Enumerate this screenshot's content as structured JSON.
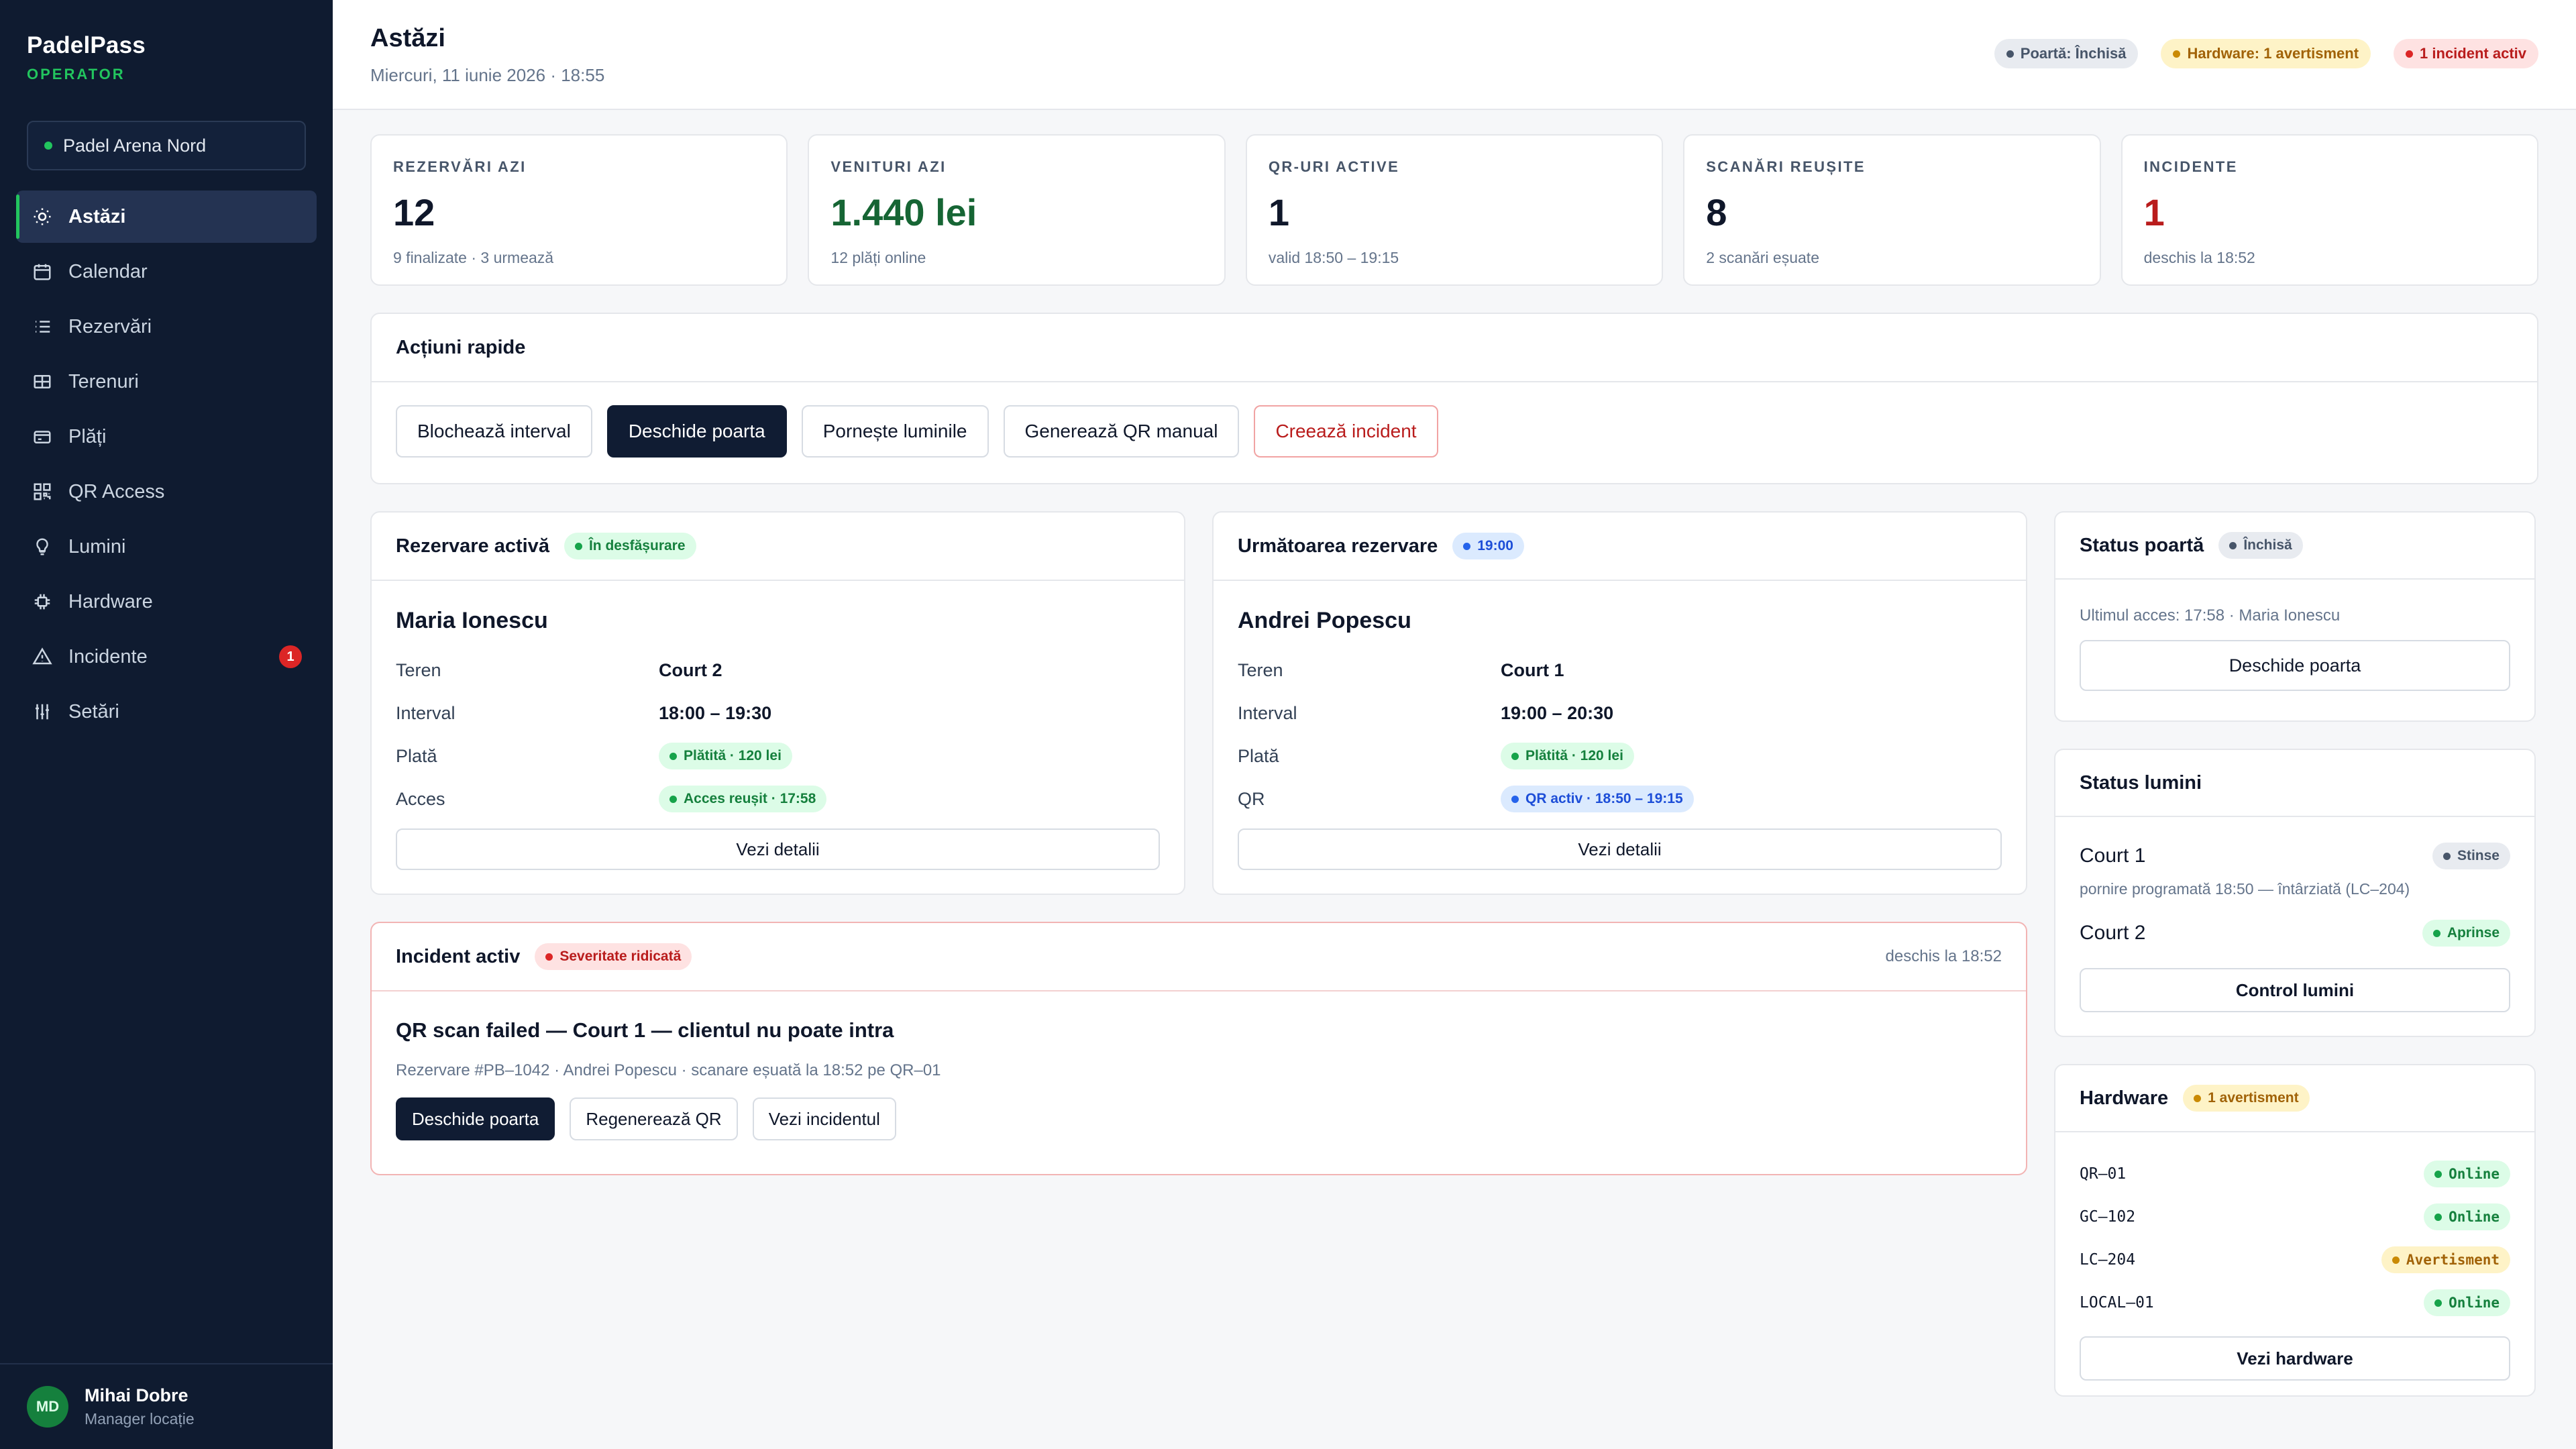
{
  "brand": {
    "name": "PadelPass",
    "subtitle": "OPERATOR"
  },
  "location": {
    "name": "Padel Arena Nord"
  },
  "sidebar": {
    "items": [
      {
        "label": "Astăzi",
        "icon": "sun-icon"
      },
      {
        "label": "Calendar",
        "icon": "calendar-icon"
      },
      {
        "label": "Rezervări",
        "icon": "list-icon"
      },
      {
        "label": "Terenuri",
        "icon": "court-grid-icon"
      },
      {
        "label": "Plăți",
        "icon": "credit-card-icon"
      },
      {
        "label": "QR Access",
        "icon": "qr-code-icon"
      },
      {
        "label": "Lumini",
        "icon": "lightbulb-icon"
      },
      {
        "label": "Hardware",
        "icon": "chip-icon"
      },
      {
        "label": "Incidente",
        "icon": "warning-icon",
        "badge": "1"
      },
      {
        "label": "Setări",
        "icon": "sliders-icon"
      }
    ]
  },
  "user": {
    "initials": "MD",
    "name": "Mihai Dobre",
    "role": "Manager locație"
  },
  "header": {
    "title": "Astăzi",
    "date": "Miercuri, 11 iunie 2026 · 18:55",
    "badges": {
      "gate": "Poartă: Închisă",
      "hardware": "Hardware: 1 avertisment",
      "incident": "1 incident activ"
    }
  },
  "stats": [
    {
      "label": "REZERVĂRI AZI",
      "value": "12",
      "sub": "9 finalizate · 3 urmează"
    },
    {
      "label": "VENITURI AZI",
      "value": "1.440 lei",
      "sub": "12 plăți online"
    },
    {
      "label": "QR-URI ACTIVE",
      "value": "1",
      "sub": "valid 18:50 – 19:15"
    },
    {
      "label": "SCANĂRI REUȘITE",
      "value": "8",
      "sub": "2 scanări eșuate"
    },
    {
      "label": "INCIDENTE",
      "value": "1",
      "sub": "deschis la 18:52"
    }
  ],
  "quick": {
    "title": "Acțiuni rapide",
    "actions": [
      "Blochează interval",
      "Deschide poarta",
      "Pornește luminile",
      "Generează QR manual",
      "Creează incident"
    ]
  },
  "active_res": {
    "title": "Rezervare activă",
    "status": "În desfășurare",
    "name": "Maria Ionescu",
    "rows": [
      {
        "k": "Teren",
        "v": "Court 2"
      },
      {
        "k": "Interval",
        "v": "18:00 – 19:30"
      },
      {
        "k": "Plată",
        "v": "Plătită · 120 lei"
      },
      {
        "k": "Acces",
        "v": "Acces reușit · 17:58"
      }
    ],
    "button": "Vezi detalii"
  },
  "next_res": {
    "title": "Următoarea rezervare",
    "status": "19:00",
    "name": "Andrei Popescu",
    "rows": [
      {
        "k": "Teren",
        "v": "Court 1"
      },
      {
        "k": "Interval",
        "v": "19:00 – 20:30"
      },
      {
        "k": "Plată",
        "v": "Plătită · 120 lei"
      },
      {
        "k": "QR",
        "v": "QR activ · 18:50 – 19:15"
      }
    ],
    "button": "Vezi detalii"
  },
  "incident": {
    "title": "Incident activ",
    "severity": "Severitate ridicată",
    "opened": "deschis la 18:52",
    "headline": "QR scan failed — Court 1 — clientul nu poate intra",
    "details": "Rezervare #PB–1042 · Andrei Popescu · scanare eșuată la 18:52 pe QR–01",
    "actions": [
      "Deschide poarta",
      "Regenerează QR",
      "Vezi incidentul"
    ]
  },
  "gate": {
    "title": "Status poartă",
    "status": "Închisă",
    "last": "Ultimul acces: 17:58 · Maria Ionescu",
    "button": "Deschide poarta"
  },
  "lights": {
    "title": "Status lumini",
    "court1": {
      "name": "Court 1",
      "status": "Stinse",
      "note": "pornire programată 18:50 — întârziată (LC–204)"
    },
    "court2": {
      "name": "Court 2",
      "status": "Aprinse"
    },
    "button": "Control lumini"
  },
  "hardware": {
    "title": "Hardware",
    "status": "1 avertisment",
    "devices": [
      {
        "id": "QR–01",
        "status": "Online"
      },
      {
        "id": "GC–102",
        "status": "Online"
      },
      {
        "id": "LC–204",
        "status": "Avertisment"
      },
      {
        "id": "LOCAL–01",
        "status": "Online"
      }
    ],
    "button": "Vezi hardware"
  },
  "colors": {
    "sidebar_bg": "#0f1b30",
    "accent_green": "#22c55e",
    "danger": "#dc2626",
    "primary_dark": "#101c33"
  }
}
